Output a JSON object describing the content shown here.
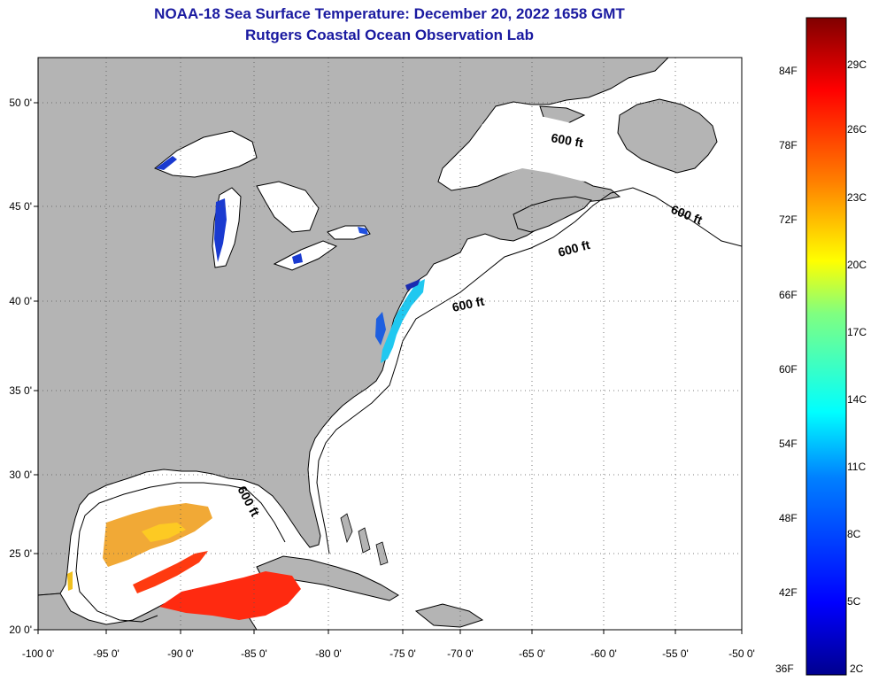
{
  "title_line1": "NOAA-18 Sea Surface Temperature:  December 20, 2022 1658 GMT",
  "title_line2": "Rutgers Coastal Ocean Observation Lab",
  "x_ticks": [
    "-100 0'",
    "-95 0'",
    "-90 0'",
    "-85 0'",
    "-80 0'",
    "-75 0'",
    "-70 0'",
    "-65 0'",
    "-60 0'",
    "-55 0'",
    "-50 0'"
  ],
  "y_ticks": [
    "50 0'",
    "45 0'",
    "40 0'",
    "35 0'",
    "30 0'",
    "25 0'",
    "20 0'"
  ],
  "contour_labels": [
    "600 ft",
    "600 ft",
    "600 ft",
    "600 ft",
    "600 ft"
  ],
  "colorbar": {
    "fahrenheit": [
      "84F",
      "78F",
      "72F",
      "66F",
      "60F",
      "54F",
      "48F",
      "42F",
      "36F"
    ],
    "celsius": [
      "29C",
      "26C",
      "23C",
      "20C",
      "17C",
      "14C",
      "11C",
      "8C",
      "5C",
      "2C"
    ]
  },
  "colors": {
    "land": "#b4b4b4",
    "ocean": "#ffffff",
    "title": "#1a1aa0"
  }
}
